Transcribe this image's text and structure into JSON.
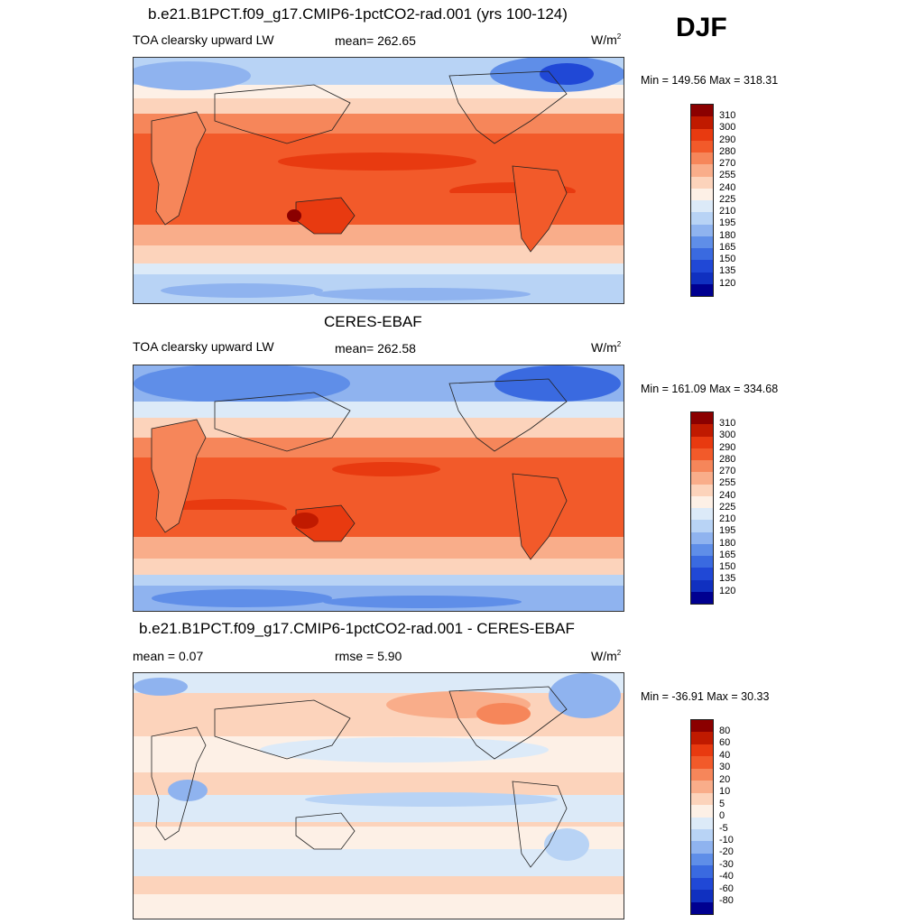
{
  "season": "DJF",
  "panels": [
    {
      "id": "model",
      "title": "b.e21.B1PCT.f09_g17.CMIP6-1pctCO2-rad.001 (yrs 100-124)",
      "left_label": "TOA clearsky upward LW",
      "center_label": "mean= 262.65",
      "units": "W/m",
      "units_sup": "2",
      "minmax": "Min = 149.56 Max = 318.31",
      "colorbar": {
        "colors": [
          "#8b0000",
          "#c01a00",
          "#e83a10",
          "#f25a2a",
          "#f6865a",
          "#f9ad8a",
          "#fcd3bb",
          "#fdf0e6",
          "#dceaf8",
          "#b8d3f5",
          "#8fb3ef",
          "#5f8ee8",
          "#3a6ae0",
          "#2048d6",
          "#1030c0",
          "#000090"
        ],
        "labels": [
          "310",
          "300",
          "290",
          "280",
          "270",
          "255",
          "240",
          "225",
          "210",
          "195",
          "180",
          "165",
          "150",
          "135",
          "120"
        ]
      }
    },
    {
      "id": "obs",
      "title": "CERES-EBAF",
      "left_label": "TOA clearsky upward LW",
      "center_label": "mean= 262.58",
      "units": "W/m",
      "units_sup": "2",
      "minmax": "Min = 161.09 Max = 334.68",
      "colorbar": {
        "colors": [
          "#8b0000",
          "#c01a00",
          "#e83a10",
          "#f25a2a",
          "#f6865a",
          "#f9ad8a",
          "#fcd3bb",
          "#fdf0e6",
          "#dceaf8",
          "#b8d3f5",
          "#8fb3ef",
          "#5f8ee8",
          "#3a6ae0",
          "#2048d6",
          "#1030c0",
          "#000090"
        ],
        "labels": [
          "310",
          "300",
          "290",
          "280",
          "270",
          "255",
          "240",
          "225",
          "210",
          "195",
          "180",
          "165",
          "150",
          "135",
          "120"
        ]
      }
    },
    {
      "id": "diff",
      "title": "b.e21.B1PCT.f09_g17.CMIP6-1pctCO2-rad.001 - CERES-EBAF",
      "left_label": "mean =   0.07",
      "center_label": "rmse =   5.90",
      "units": "W/m",
      "units_sup": "2",
      "minmax": "Min = -36.91 Max =  30.33",
      "colorbar": {
        "colors": [
          "#8b0000",
          "#c01a00",
          "#e83a10",
          "#f25a2a",
          "#f6865a",
          "#f9ad8a",
          "#fcd3bb",
          "#fdf0e6",
          "#dceaf8",
          "#b8d3f5",
          "#8fb3ef",
          "#5f8ee8",
          "#3a6ae0",
          "#2048d6",
          "#1030c0",
          "#000090"
        ],
        "labels": [
          "80",
          "60",
          "40",
          "30",
          "20",
          "10",
          "5",
          "0",
          "-5",
          "-10",
          "-20",
          "-30",
          "-40",
          "-60",
          "-80"
        ]
      }
    }
  ]
}
